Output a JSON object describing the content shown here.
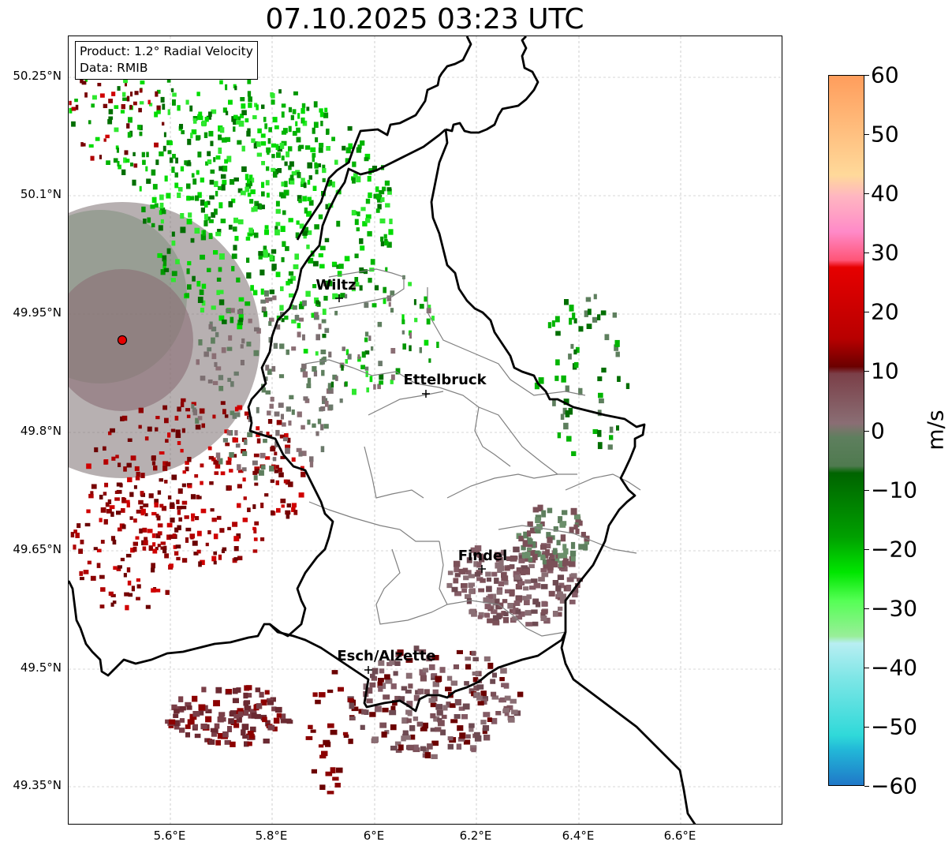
{
  "title": "07.10.2025 03:23 UTC",
  "info": {
    "line1": "Product: 1.2° Radial Velocity",
    "line2": "Data: RMIB"
  },
  "lat_labels": [
    "50.25°N",
    "50.1°N",
    "49.95°N",
    "49.8°N",
    "49.65°N",
    "49.5°N",
    "49.35°N"
  ],
  "lon_labels": [
    "5.6°E",
    "5.8°E",
    "6°E",
    "6.2°E",
    "6.4°E",
    "6.6°E"
  ],
  "cities": [
    {
      "name": "Wiltz"
    },
    {
      "name": "Ettelbruck"
    },
    {
      "name": "Findel"
    },
    {
      "name": "Esch/Alzette"
    }
  ],
  "colorbar": {
    "unit": "m/s",
    "min": -60,
    "max": 60,
    "ticks": [
      "60",
      "50",
      "40",
      "30",
      "20",
      "10",
      "0",
      "−10",
      "−20",
      "−30",
      "−40",
      "−50",
      "−60"
    ],
    "colors": {
      "approaching_strong": "#1f78c8",
      "approaching_cyan": "#2fd9d9",
      "approaching_green": "#00e600",
      "approaching_darkgreen": "#006400",
      "near_zero_green": "#5e7f5e",
      "near_zero_mauve": "#8a6e74",
      "receding_darkred": "#6b0000",
      "receding_red": "#e60000",
      "receding_pink": "#ff8ac8",
      "receding_orange": "#ff9d5c"
    }
  },
  "radar": {
    "marker_color": "#e60000"
  },
  "map": {
    "gridlines": true,
    "border_color": "#000000",
    "canton_color": "#808080"
  }
}
